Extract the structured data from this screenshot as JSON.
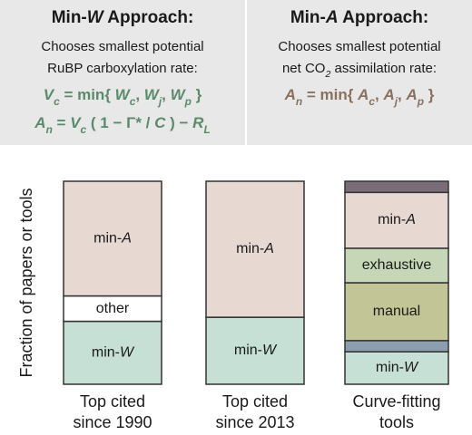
{
  "panels": [
    {
      "title": [
        {
          "text": "Min-"
        },
        {
          "text": "W",
          "italic": true
        },
        {
          "text": " Approach:"
        }
      ],
      "lines": [
        [
          {
            "text": "Chooses smallest potential"
          }
        ],
        [
          {
            "text": "RuBP carboxylation rate:"
          }
        ]
      ],
      "equations": [
        [
          {
            "text": "V",
            "italic": true
          },
          {
            "text": "c",
            "sub": true
          },
          {
            "text": " = min{ "
          },
          {
            "text": "W",
            "italic": true
          },
          {
            "text": "c",
            "sub": true
          },
          {
            "text": ", "
          },
          {
            "text": "W",
            "italic": true
          },
          {
            "text": "j",
            "sub": true
          },
          {
            "text": ", "
          },
          {
            "text": "W",
            "italic": true
          },
          {
            "text": "p",
            "sub": true
          },
          {
            "text": " }"
          }
        ],
        [
          {
            "text": "A",
            "italic": true
          },
          {
            "text": "n",
            "sub": true
          },
          {
            "text": " = "
          },
          {
            "text": "V",
            "italic": true
          },
          {
            "text": "c",
            "sub": true
          },
          {
            "text": " ( 1 − Γ* / "
          },
          {
            "text": "C",
            "italic": true
          },
          {
            "text": " ) − "
          },
          {
            "text": "R",
            "italic": true
          },
          {
            "text": "L",
            "sub": true
          }
        ]
      ],
      "color": "#5b8a6c"
    },
    {
      "title": [
        {
          "text": "Min-"
        },
        {
          "text": "A",
          "italic": true
        },
        {
          "text": " Approach:"
        }
      ],
      "lines": [
        [
          {
            "text": "Chooses smallest potential"
          }
        ],
        [
          {
            "text": "net CO"
          },
          {
            "text": "2",
            "sub": true
          },
          {
            "text": " assimilation rate:"
          }
        ]
      ],
      "equations": [
        [
          {
            "text": "A",
            "italic": true
          },
          {
            "text": "n",
            "sub": true
          },
          {
            "text": " = min{ "
          },
          {
            "text": "A",
            "italic": true
          },
          {
            "text": "c",
            "sub": true
          },
          {
            "text": ", "
          },
          {
            "text": "A",
            "italic": true
          },
          {
            "text": "j",
            "sub": true
          },
          {
            "text": ", "
          },
          {
            "text": "A",
            "italic": true
          },
          {
            "text": "p",
            "sub": true
          },
          {
            "text": " }"
          }
        ]
      ],
      "color": "#8a7060"
    }
  ],
  "chart_data": {
    "type": "stacked_bar",
    "y_label": "Fraction of papers or tools",
    "categories": [
      [
        "Top cited",
        "since 1990"
      ],
      [
        "Top cited",
        "since 2013"
      ],
      [
        "Curve-fitting",
        "tools"
      ]
    ],
    "ylim": [
      0,
      1
    ],
    "series": [
      {
        "name": "min-W",
        "color": "#c6e0d6",
        "values": [
          0.31,
          0.33,
          0.16
        ]
      },
      {
        "color": "#8c9eae",
        "values": [
          null,
          null,
          0.055
        ]
      },
      {
        "name": "other",
        "color": "#ffffff",
        "values": [
          0.125,
          null,
          null
        ]
      },
      {
        "name": "manual",
        "color": "#c2c697",
        "values": [
          null,
          null,
          0.285
        ]
      },
      {
        "name": "exhaustive",
        "color": "#c5d7b6",
        "values": [
          null,
          null,
          0.17
        ]
      },
      {
        "name": "min-A",
        "color": "#e7d9d1",
        "values": [
          0.565,
          0.67,
          0.275
        ]
      },
      {
        "color": "#7b6d78",
        "values": [
          null,
          null,
          0.055
        ]
      }
    ]
  }
}
